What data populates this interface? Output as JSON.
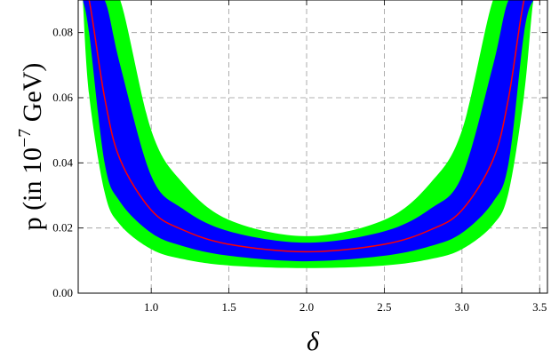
{
  "chart_data": {
    "type": "area",
    "title": "",
    "xlabel": "δ",
    "ylabel_main": "p (in 10",
    "ylabel_sup": "−7",
    "ylabel_tail": " GeV)",
    "xlim": [
      0.53,
      3.55
    ],
    "ylim": [
      0,
      0.09
    ],
    "xticks": [
      1.0,
      1.5,
      2.0,
      2.5,
      3.0,
      3.5
    ],
    "xtick_labels": [
      "1.0",
      "1.5",
      "2.0",
      "2.5",
      "3.0",
      "3.5"
    ],
    "yticks": [
      0.0,
      0.02,
      0.04,
      0.06,
      0.08
    ],
    "ytick_labels": [
      "0.00",
      "0.02",
      "0.04",
      "0.06",
      "0.08"
    ],
    "grid": true,
    "x": [
      0.56,
      0.6,
      0.7,
      0.8,
      1.0,
      1.2,
      1.5,
      2.0,
      2.5,
      2.8,
      3.0,
      3.2,
      3.3,
      3.4,
      3.46,
      3.5
    ],
    "series": [
      {
        "color": "#00ff00",
        "role": "outer-band-lower",
        "values": [
          0.09,
          0.061,
          0.031,
          0.021,
          0.0135,
          0.0105,
          0.0085,
          0.0077,
          0.0085,
          0.0105,
          0.0135,
          0.021,
          0.031,
          0.061,
          0.09,
          0.09
        ]
      },
      {
        "color": "#00ff00",
        "role": "outer-band-upper",
        "values": [
          0.09,
          0.09,
          0.09,
          0.09,
          0.05,
          0.034,
          0.0225,
          0.0175,
          0.0225,
          0.034,
          0.05,
          0.09,
          0.09,
          0.09,
          0.09,
          0.09
        ]
      },
      {
        "color": "#0000ff",
        "role": "inner-band-lower",
        "values": [
          0.09,
          0.08,
          0.04,
          0.028,
          0.0185,
          0.0145,
          0.0115,
          0.0098,
          0.0115,
          0.0145,
          0.0185,
          0.028,
          0.04,
          0.08,
          0.09,
          0.09
        ]
      },
      {
        "color": "#0000ff",
        "role": "inner-band-upper",
        "values": [
          0.09,
          0.09,
          0.09,
          0.07,
          0.036,
          0.026,
          0.019,
          0.0155,
          0.019,
          0.026,
          0.036,
          0.07,
          0.09,
          0.09,
          0.09,
          0.09
        ]
      },
      {
        "color": "#ff0000",
        "role": "central-line",
        "values": [
          0.09,
          0.09,
          0.06,
          0.041,
          0.0255,
          0.0195,
          0.015,
          0.0127,
          0.015,
          0.0195,
          0.0255,
          0.041,
          0.06,
          0.09,
          0.09,
          0.09
        ]
      }
    ]
  }
}
